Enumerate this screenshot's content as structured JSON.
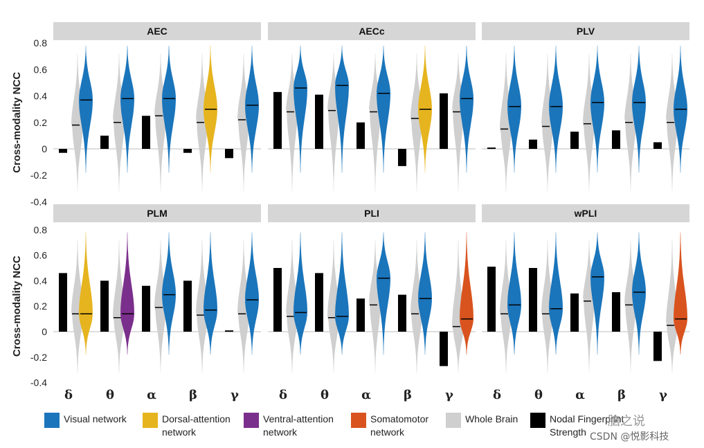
{
  "colors": {
    "visual": "#1a75bb",
    "dorsal": "#e6b41e",
    "ventral": "#7b2f8c",
    "somatomotor": "#d9531e",
    "whole": "#cfcfcf",
    "nodal": "#000000",
    "strip": "#d6d6d6"
  },
  "axis": {
    "ylabel": "Cross-modality NCC",
    "yticks": [
      "0.8",
      "0.6",
      "0.4",
      "0.2",
      "0",
      "-0.2",
      "-0.4"
    ],
    "ylim": [
      -0.4,
      0.8
    ],
    "bands": [
      "δ",
      "θ",
      "α",
      "β",
      "γ"
    ]
  },
  "chart_data": [
    {
      "type": "bar+violin",
      "title": "AEC",
      "categories": [
        "δ",
        "θ",
        "α",
        "β",
        "γ"
      ],
      "nodal": [
        -0.03,
        0.1,
        0.25,
        -0.03,
        -0.07
      ],
      "whole_median": [
        0.18,
        0.2,
        0.25,
        0.2,
        0.22
      ],
      "network_median": [
        0.37,
        0.38,
        0.38,
        0.3,
        0.33
      ],
      "network": [
        "visual",
        "visual",
        "visual",
        "dorsal",
        "visual"
      ]
    },
    {
      "type": "bar+violin",
      "title": "AECc",
      "categories": [
        "δ",
        "θ",
        "α",
        "β",
        "γ"
      ],
      "nodal": [
        0.43,
        0.41,
        0.2,
        -0.13,
        0.42
      ],
      "whole_median": [
        0.28,
        0.29,
        0.28,
        0.23,
        0.28
      ],
      "network_median": [
        0.46,
        0.48,
        0.42,
        0.3,
        0.38
      ],
      "network": [
        "visual",
        "visual",
        "visual",
        "dorsal",
        "visual"
      ]
    },
    {
      "type": "bar+violin",
      "title": "PLV",
      "categories": [
        "δ",
        "θ",
        "α",
        "β",
        "γ"
      ],
      "nodal": [
        0.01,
        0.07,
        0.13,
        0.14,
        0.05
      ],
      "whole_median": [
        0.15,
        0.17,
        0.19,
        0.2,
        0.2
      ],
      "network_median": [
        0.32,
        0.32,
        0.35,
        0.35,
        0.3
      ],
      "network": [
        "visual",
        "visual",
        "visual",
        "visual",
        "visual"
      ]
    },
    {
      "type": "bar+violin",
      "title": "PLM",
      "categories": [
        "δ",
        "θ",
        "α",
        "β",
        "γ"
      ],
      "nodal": [
        0.46,
        0.4,
        0.36,
        0.4,
        0.01
      ],
      "whole_median": [
        0.14,
        0.11,
        0.19,
        0.13,
        0.14
      ],
      "network_median": [
        0.14,
        0.14,
        0.29,
        0.17,
        0.25
      ],
      "network": [
        "dorsal",
        "ventral",
        "visual",
        "visual",
        "visual"
      ]
    },
    {
      "type": "bar+violin",
      "title": "PLI",
      "categories": [
        "δ",
        "θ",
        "α",
        "β",
        "γ"
      ],
      "nodal": [
        0.5,
        0.46,
        0.26,
        0.29,
        -0.27
      ],
      "whole_median": [
        0.12,
        0.11,
        0.21,
        0.14,
        0.04
      ],
      "network_median": [
        0.15,
        0.12,
        0.42,
        0.26,
        0.1
      ],
      "network": [
        "visual",
        "visual",
        "visual",
        "visual",
        "somatomotor"
      ]
    },
    {
      "type": "bar+violin",
      "title": "wPLI",
      "categories": [
        "δ",
        "θ",
        "α",
        "β",
        "γ"
      ],
      "nodal": [
        0.51,
        0.5,
        0.3,
        0.31,
        -0.23
      ],
      "whole_median": [
        0.14,
        0.14,
        0.24,
        0.21,
        0.05
      ],
      "network_median": [
        0.21,
        0.18,
        0.43,
        0.31,
        0.1
      ],
      "network": [
        "visual",
        "visual",
        "visual",
        "visual",
        "somatomotor"
      ]
    }
  ],
  "legend": [
    {
      "key": "visual",
      "label": "Visual network"
    },
    {
      "key": "dorsal",
      "label": "Dorsal-attention\nnetwork"
    },
    {
      "key": "ventral",
      "label": "Ventral-attention\nnetwork"
    },
    {
      "key": "somatomotor",
      "label": "Somatomotor\nnetwork"
    },
    {
      "key": "whole",
      "label": "Whole Brain"
    },
    {
      "key": "nodal",
      "label": "Nodal Fingerprint\nStrength"
    }
  ],
  "watermark": {
    "text1": "脑之说",
    "text2": "CSDN @悦影科技"
  }
}
